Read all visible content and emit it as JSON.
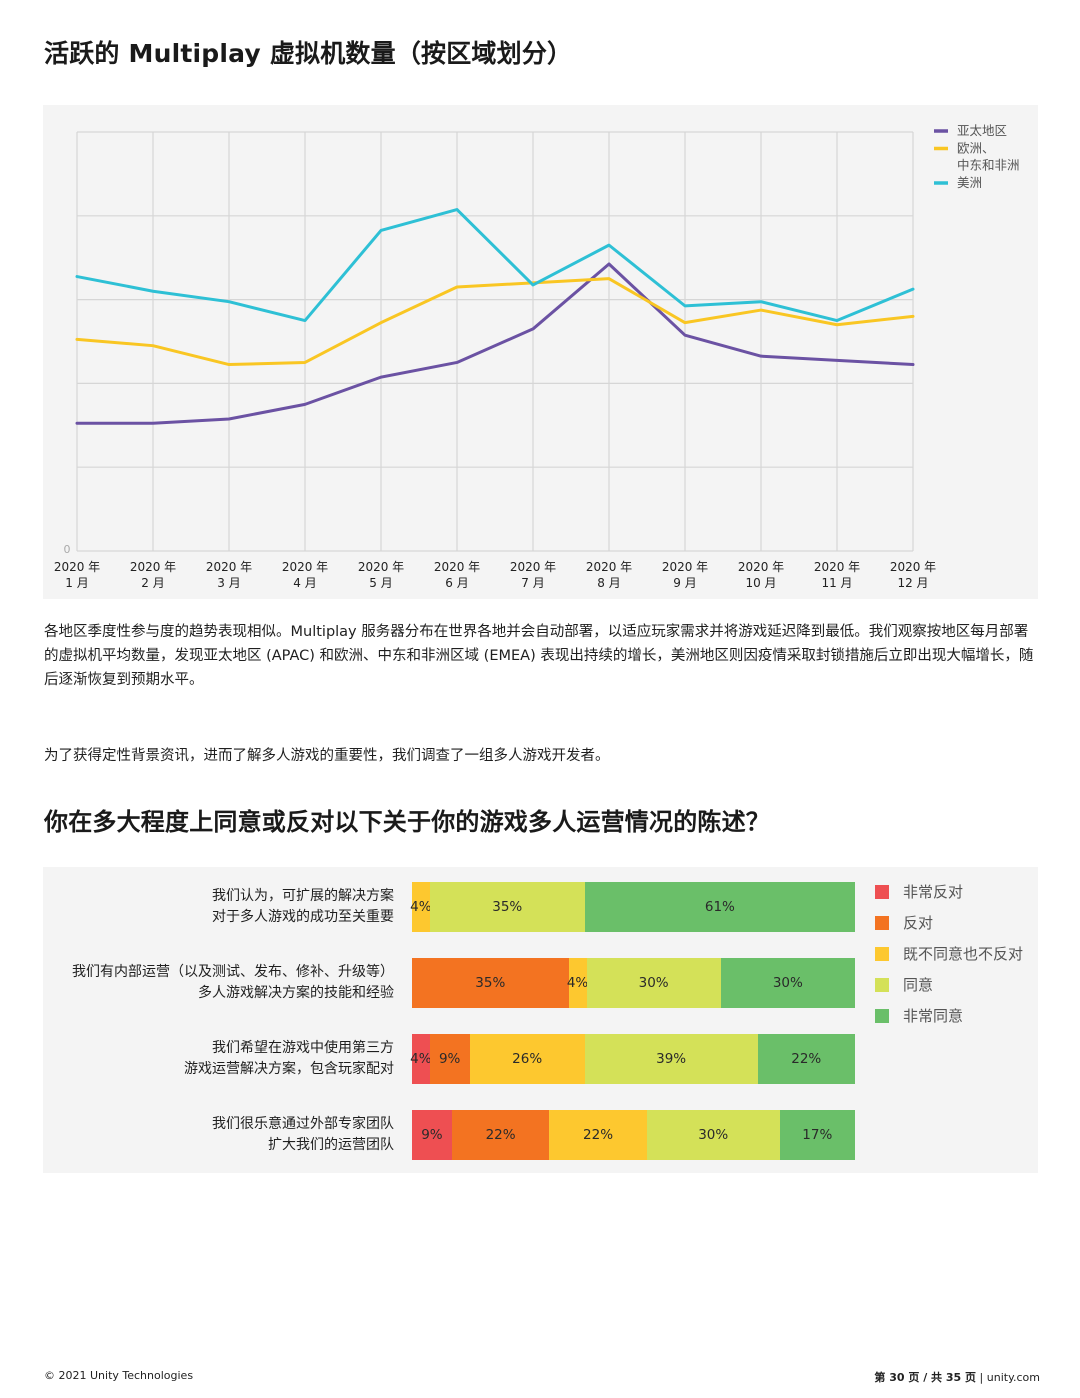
{
  "page": {
    "title1": "活跃的 Multiplay 虚拟机数量（按区域划分）",
    "paragraph1": "各地区季度性参与度的趋势表现相似。Multiplay 服务器分布在世界各地并会自动部署，以适应玩家需求并将游戏延迟降到最低。我们观察按地区每月部署的虚拟机平均数量，发现亚太地区 (APAC) 和欧洲、中东和非洲区域 (EMEA) 表现出持续的增长，美洲地区则因疫情采取封锁措施后立即出现大幅增长，随后逐渐恢复到预期水平。",
    "paragraph2": "为了获得定性背景资讯，进而了解多人游戏的重要性，我们调查了一组多人游戏开发者。",
    "title2": "你在多大程度上同意或反对以下关于你的游戏多人运营情况的陈述？"
  },
  "footer": {
    "copyright": "© 2021 Unity Technologies",
    "page_info": "第 30 页 / 共 35 页",
    "separator": "|",
    "site": "unity.com"
  },
  "chart_data": [
    {
      "type": "line",
      "title": "活跃的 Multiplay 虚拟机数量（按区域划分）",
      "y_zero_label": "0",
      "ylim": [
        0,
        100
      ],
      "grid": true,
      "legend_position": "top-right",
      "categories": [
        [
          "2020 年",
          "1 月"
        ],
        [
          "2020 年",
          "2 月"
        ],
        [
          "2020 年",
          "3 月"
        ],
        [
          "2020 年",
          "4 月"
        ],
        [
          "2020 年",
          "5 月"
        ],
        [
          "2020 年",
          "6 月"
        ],
        [
          "2020 年",
          "7 月"
        ],
        [
          "2020 年",
          "8 月"
        ],
        [
          "2020 年",
          "9 月"
        ],
        [
          "2020 年",
          "10 月"
        ],
        [
          "2020 年",
          "11 月"
        ],
        [
          "2020 年",
          "12 月"
        ]
      ],
      "series": [
        {
          "name": "亚太地区",
          "color": "#6b52a3",
          "values": [
            30.5,
            30.5,
            31.5,
            35,
            41.5,
            45,
            53,
            68.5,
            51.5,
            46.5,
            45.5,
            44.5
          ]
        },
        {
          "name": "欧洲、中东和非洲",
          "legend_lines": [
            "欧洲、",
            "中东和非洲"
          ],
          "color": "#f9c623",
          "values": [
            50.5,
            49,
            44.5,
            45,
            54.5,
            63,
            64,
            65,
            54.5,
            57.5,
            54,
            56
          ]
        },
        {
          "name": "美洲",
          "color": "#2ec0d5",
          "values": [
            65.5,
            62,
            59.5,
            55,
            76.5,
            81.5,
            63.5,
            73,
            58.5,
            59.5,
            55,
            62.5
          ]
        }
      ]
    },
    {
      "type": "bar",
      "orientation": "horizontal-stacked",
      "title": "你在多大程度上同意或反对以下关于你的游戏多人运营情况的陈述？",
      "legend_position": "right",
      "legend": [
        {
          "name": "非常反对",
          "color": "#ee4f52"
        },
        {
          "name": "反对",
          "color": "#f37321"
        },
        {
          "name": "既不同意也不反对",
          "color": "#fdc82f"
        },
        {
          "name": "同意",
          "color": "#d4e158"
        },
        {
          "name": "非常同意",
          "color": "#6abf69"
        }
      ],
      "rows": [
        {
          "label_lines": [
            "我们认为，可扩展的解决方案",
            "对于多人游戏的成功至关重要"
          ],
          "values": [
            0,
            0,
            4,
            35,
            61
          ],
          "labels": [
            "",
            "",
            "4%",
            "35%",
            "61%"
          ]
        },
        {
          "label_lines": [
            "我们有内部运营（以及测试、发布、修补、升级等）",
            "多人游戏解决方案的技能和经验"
          ],
          "values": [
            0,
            35,
            4,
            30,
            30
          ],
          "labels": [
            "",
            "35%",
            "4%",
            "30%",
            "30%"
          ]
        },
        {
          "label_lines": [
            "我们希望在游戏中使用第三方",
            "游戏运营解决方案，包含玩家配对"
          ],
          "values": [
            4,
            9,
            26,
            39,
            22
          ],
          "labels": [
            "4%",
            "9%",
            "26%",
            "39%",
            "22%"
          ]
        },
        {
          "label_lines": [
            "我们很乐意通过外部专家团队",
            "扩大我们的运营团队"
          ],
          "values": [
            9,
            22,
            22,
            30,
            17
          ],
          "labels": [
            "9%",
            "22%",
            "22%",
            "30%",
            "17%"
          ]
        }
      ]
    }
  ]
}
